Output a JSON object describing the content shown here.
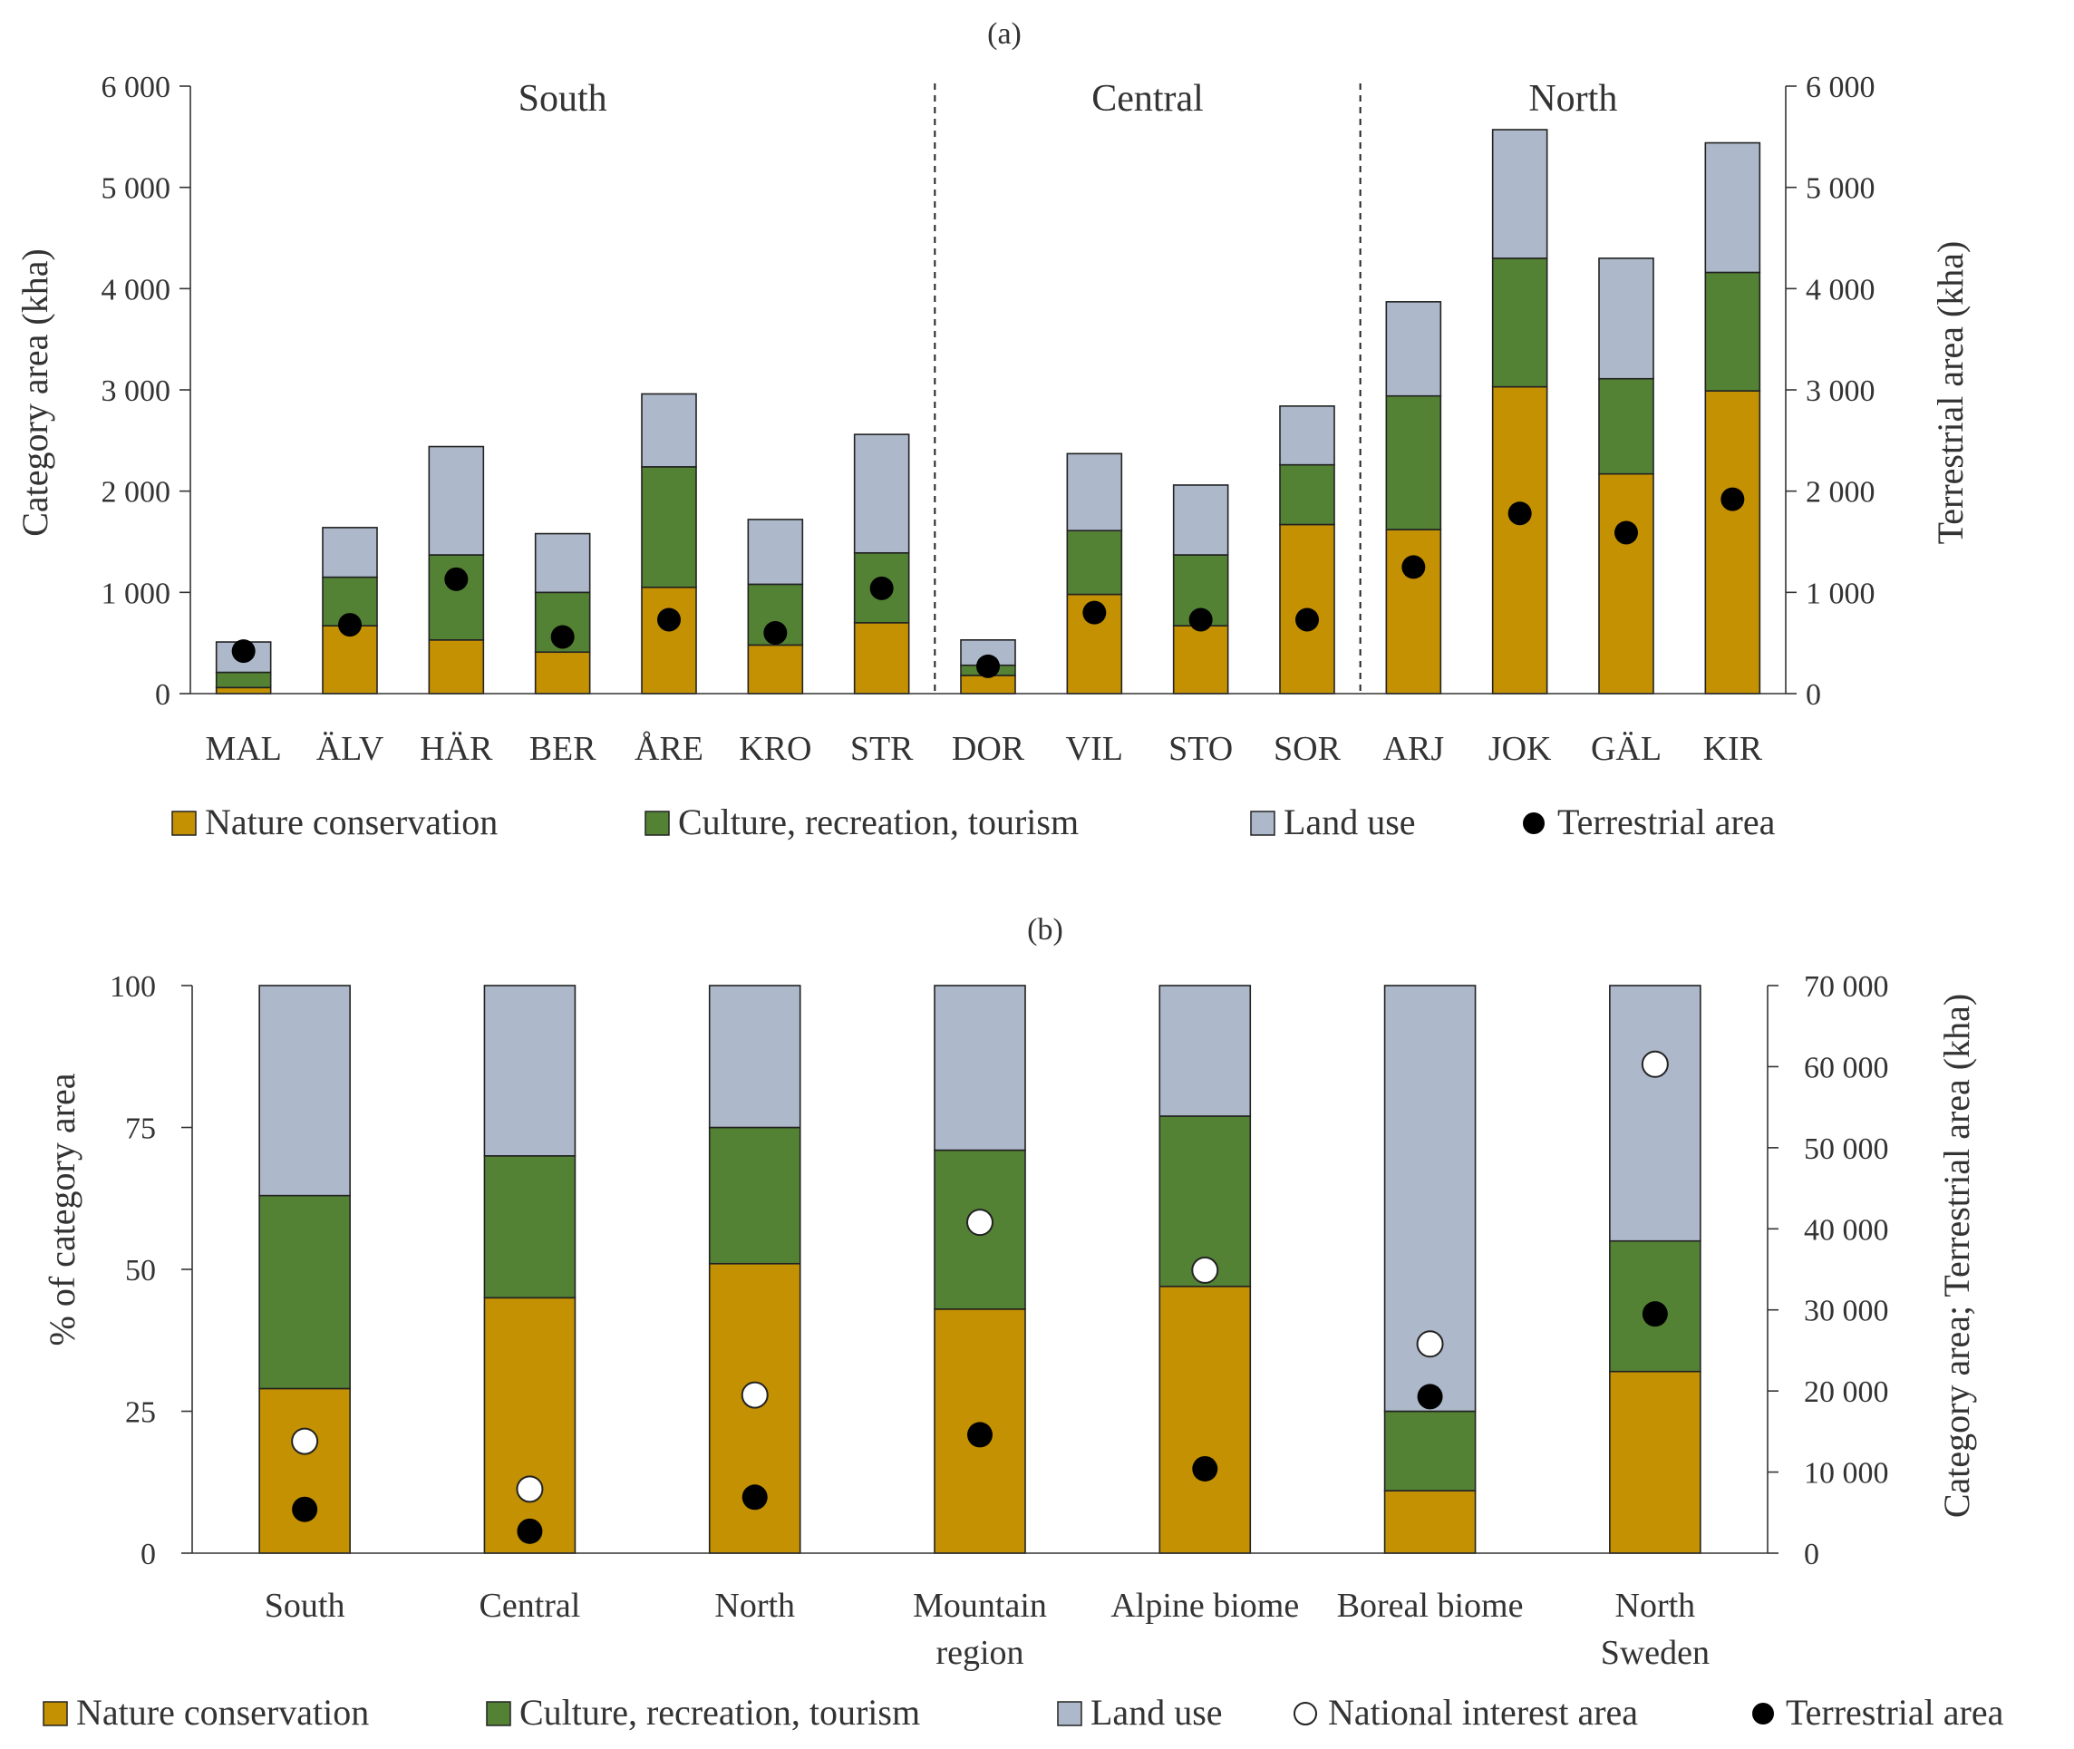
{
  "chart_data": [
    {
      "type": "bar",
      "stacked": true,
      "title": "(a)",
      "ylabel": "Category area (kha)",
      "y2label": "Terrestrial area (kha)",
      "ylim": [
        0,
        6000
      ],
      "y2lim": [
        0,
        6000
      ],
      "yticks": [
        "0",
        "1 000",
        "2 000",
        "3 000",
        "4 000",
        "5 000",
        "6 000"
      ],
      "y2ticks": [
        "0",
        "1 000",
        "2 000",
        "3 000",
        "4 000",
        "5 000",
        "6 000"
      ],
      "categories": [
        "MAL",
        "ÄLV",
        "HÄR",
        "BER",
        "ÅRE",
        "KRO",
        "STR",
        "DOR",
        "VIL",
        "STO",
        "SOR",
        "ARJ",
        "JOK",
        "GÄL",
        "KIR"
      ],
      "groups": [
        {
          "label": "South",
          "from": 0,
          "to": 6
        },
        {
          "label": "Central",
          "from": 7,
          "to": 10
        },
        {
          "label": "North",
          "from": 11,
          "to": 14
        }
      ],
      "series": [
        {
          "name": "Nature conservation",
          "values": [
            60,
            670,
            530,
            410,
            1050,
            480,
            700,
            180,
            980,
            670,
            1670,
            1620,
            3030,
            2170,
            2990
          ]
        },
        {
          "name": "Culture, recreation, tourism",
          "values": [
            150,
            480,
            840,
            590,
            1190,
            600,
            690,
            100,
            630,
            700,
            590,
            1320,
            1270,
            940,
            1170
          ]
        },
        {
          "name": "Land use",
          "values": [
            300,
            490,
            1070,
            580,
            720,
            640,
            1170,
            250,
            760,
            690,
            580,
            930,
            1270,
            1190,
            1280
          ]
        },
        {
          "name": "Terrestrial area",
          "axis": "right",
          "values": [
            420,
            680,
            1130,
            560,
            730,
            600,
            1040,
            270,
            800,
            730,
            730,
            1250,
            1780,
            1590,
            1920
          ]
        }
      ],
      "legend": "bottom"
    },
    {
      "type": "bar",
      "stacked": true,
      "title": "(b)",
      "ylabel": "% of category area",
      "y2label": "Category area; Terrestrial area (kha)",
      "ylim": [
        0,
        100
      ],
      "y2lim": [
        0,
        70000
      ],
      "yticks": [
        "0",
        "25",
        "50",
        "75",
        "100"
      ],
      "y2ticks": [
        "0",
        "10 000",
        "20 000",
        "30 000",
        "40 000",
        "50 000",
        "60 000",
        "70 000"
      ],
      "categories": [
        "South",
        "Central",
        "North",
        "Mountain region",
        "Alpine biome",
        "Boreal biome",
        "North Sweden"
      ],
      "series": [
        {
          "name": "Nature conservation",
          "values": [
            29,
            45,
            51,
            43,
            47,
            11,
            32
          ]
        },
        {
          "name": "Culture, recreation, tourism",
          "values": [
            34,
            25,
            24,
            28,
            30,
            14,
            23
          ]
        },
        {
          "name": "Land use",
          "values": [
            37,
            30,
            25,
            29,
            23,
            75,
            45
          ]
        },
        {
          "name": "National interest area",
          "axis": "right",
          "values": [
            13800,
            7900,
            19500,
            40800,
            34900,
            25800,
            60300
          ]
        },
        {
          "name": "Terrestrial area",
          "axis": "right",
          "values": [
            5400,
            2700,
            6900,
            14600,
            10400,
            19300,
            29500
          ]
        }
      ],
      "legend": "bottom"
    }
  ],
  "colors": {
    "nature": "#c49102",
    "culture": "#548235",
    "landuse": "#adb9ca",
    "terrestrial": "#000000",
    "national": "#ffffff"
  }
}
